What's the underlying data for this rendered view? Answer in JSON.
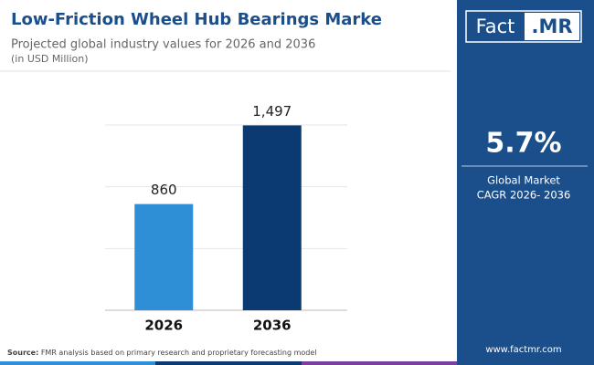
{
  "chart_data": {
    "type": "bar",
    "title": "Low-Friction Wheel Hub Bearings Marke",
    "subtitle": "Projected global industry values for 2026 and 2036",
    "unit_note": "(in USD Million)",
    "categories": [
      "2026",
      "2036"
    ],
    "values": [
      860,
      1497
    ],
    "value_labels": [
      "860",
      "1,497"
    ],
    "colors": [
      "#2e8fd6",
      "#0b3a73"
    ],
    "ylim": [
      0,
      1500
    ],
    "yticks": [
      0,
      500,
      1000,
      1500
    ],
    "grid": true
  },
  "source": {
    "label": "Source:",
    "text": "FMR analysis based on primary research and proprietary forecasting model"
  },
  "sidebar": {
    "logo_left": "Fact",
    "logo_right": ".MR",
    "cagr": "5.7%",
    "cagr_label": [
      "Global Market",
      "CAGR 2026- 2036"
    ],
    "website": "www.factmr.com"
  }
}
